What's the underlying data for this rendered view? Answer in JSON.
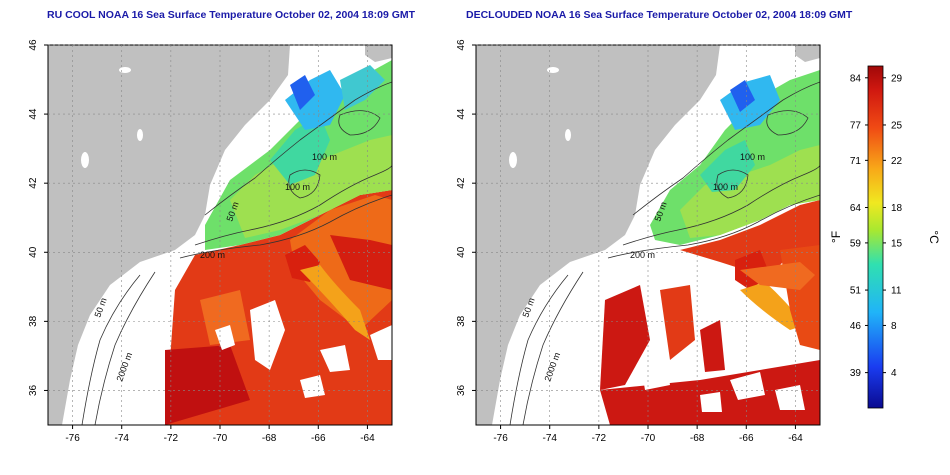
{
  "panels": [
    {
      "title": "RU COOL NOAA 16 Sea Surface Temperature October 02, 2004 18:09 GMT",
      "contour_labels": [
        "100 m",
        "100 m",
        "50 m",
        "200 m",
        "50 m",
        "2000 m"
      ]
    },
    {
      "title": "DECLOUDED NOAA 16 Sea Surface Temperature October 02, 2004 18:09 GMT",
      "contour_labels": [
        "100 m",
        "100 m",
        "50 m",
        "200 m",
        "50 m",
        "2000 m"
      ]
    }
  ],
  "map_axes": {
    "x_ticks": [
      "-76",
      "-74",
      "-72",
      "-70",
      "-68",
      "-66",
      "-64"
    ],
    "y_ticks": [
      "46",
      "44",
      "42",
      "40",
      "38",
      "36"
    ],
    "lon_range": [
      -77.0,
      -63.0
    ],
    "lat_range": [
      35.0,
      46.0
    ]
  },
  "colorbar": {
    "fahrenheit_label": "°F",
    "celsius_label": "°C",
    "fahrenheit_ticks": [
      "84",
      "77",
      "71",
      "64",
      "59",
      "51",
      "46",
      "39"
    ],
    "celsius_ticks": [
      "29",
      "25",
      "22",
      "18",
      "15",
      "11",
      "8",
      "4"
    ],
    "celsius_values": [
      29,
      25,
      22,
      18,
      15,
      11,
      8,
      4
    ],
    "range_c": [
      1,
      30
    ]
  },
  "colors": {
    "land": "#c0c0c0",
    "cloud": "#ffffff",
    "title": "#1a1aa8",
    "warm": "#cc1414",
    "cool": "#2a8cff"
  }
}
